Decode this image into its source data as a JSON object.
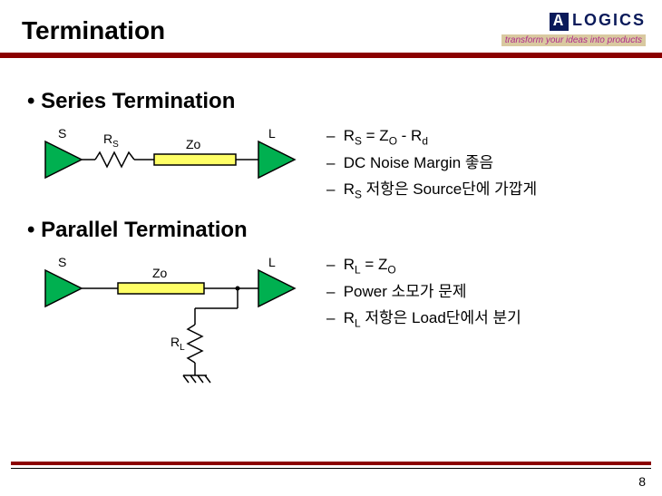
{
  "title": "Termination",
  "brand": {
    "name": "LOGICS",
    "prefix": "A",
    "tagline": "transform your ideas into products"
  },
  "series": {
    "heading": "•  Series Termination",
    "labels": {
      "s": "S",
      "rs": "R",
      "rs_sub": "S",
      "zo": "Zo",
      "l": "L"
    },
    "bullets": [
      "R<sub>S</sub> = Z<sub>O</sub> - R<sub>d</sub>",
      "DC Noise Margin 좋음",
      "R<sub>S</sub> 저항은 Source단에 가깝게"
    ],
    "colors": {
      "buffer": "#00b050",
      "tline": "#ffff66",
      "wire": "#000000"
    }
  },
  "parallel": {
    "heading": "•  Parallel Termination",
    "labels": {
      "s": "S",
      "zo": "Zo",
      "l": "L",
      "rl": "R",
      "rl_sub": "L"
    },
    "bullets": [
      "R<sub>L</sub> = Z<sub>O</sub>",
      "Power 소모가 문제",
      "R<sub>L</sub> 저항은 Load단에서 분기"
    ]
  },
  "page_number": "8",
  "theme": {
    "rule_color": "#8b0000"
  }
}
